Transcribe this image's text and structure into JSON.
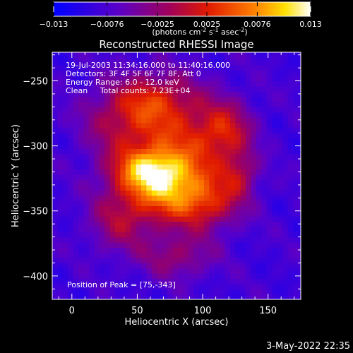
{
  "chart_data": {
    "type": "heatmap",
    "title": "Reconstructed RHESSI Image",
    "xlabel": "Heliocentric X (arcsec)",
    "ylabel": "Heliocentric Y (arcsec)",
    "xlim": [
      -15,
      175
    ],
    "ylim": [
      -418,
      -228
    ],
    "x_ticks": [
      0,
      50,
      100,
      150
    ],
    "y_ticks": [
      -250,
      -300,
      -350,
      -400
    ],
    "colorbar": {
      "range": [
        -0.013,
        0.013
      ],
      "ticks": [
        "-0.013",
        "-0.0076",
        "-0.0025",
        "0.0025",
        "0.0076",
        "0.013"
      ],
      "units_prefix": "(photons cm",
      "units_sup1": "-2",
      "units_mid1": " s",
      "units_sup2": "-1",
      "units_mid2": " asec",
      "units_sup3": "-2",
      "units_suffix": ")"
    },
    "annotations": {
      "time_range": "19-Jul-2003 11:34:16.000 to 11:40:16.000",
      "detectors": "Detectors: 3F 4F 5F 6F 7F 8F, Att 0",
      "energy": "Energy Range: 6.0 - 12.0 keV",
      "method": "Clean     Total counts: 7.23E+04",
      "peak": "Position of Peak = [75,-343]"
    },
    "source_components": [
      {
        "x": 72,
        "y": -335,
        "sx": 26,
        "sy": 18,
        "amp": 0.0125
      },
      {
        "x": 58,
        "y": -318,
        "sx": 20,
        "sy": 12,
        "amp": 0.0105
      },
      {
        "x": 85,
        "y": -295,
        "sx": 25,
        "sy": 25,
        "amp": 0.0085
      },
      {
        "x": 40,
        "y": -280,
        "sx": 22,
        "sy": 20,
        "amp": 0.0075
      },
      {
        "x": 118,
        "y": -288,
        "sx": 14,
        "sy": 16,
        "amp": 0.0075
      },
      {
        "x": 65,
        "y": -262,
        "sx": 20,
        "sy": 14,
        "amp": 0.0062
      },
      {
        "x": 105,
        "y": -345,
        "sx": 18,
        "sy": 14,
        "amp": 0.0065
      },
      {
        "x": 35,
        "y": -360,
        "sx": 16,
        "sy": 16,
        "amp": 0.0055
      },
      {
        "x": 80,
        "y": -385,
        "sx": 20,
        "sy": 12,
        "amp": 0.0058
      },
      {
        "x": 128,
        "y": -322,
        "sx": 10,
        "sy": 12,
        "amp": 0.006
      }
    ],
    "background_level": -0.0082
  },
  "footer": {
    "timestamp": "3-May-2022 22:35"
  }
}
